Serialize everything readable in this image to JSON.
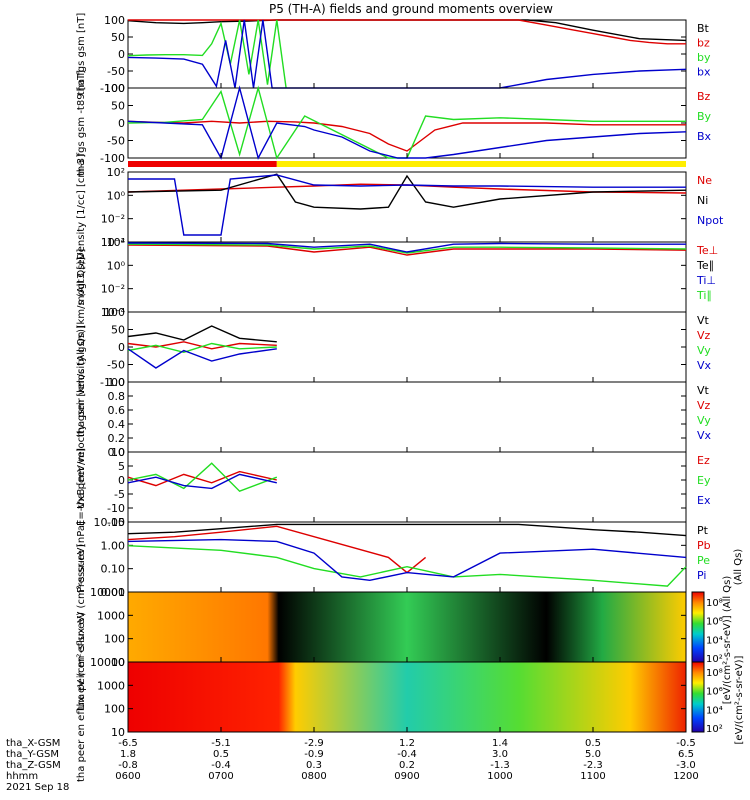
{
  "title": "P5 (TH-A) fields and ground moments overview",
  "colors": {
    "black": "#000000",
    "red": "#dd0000",
    "green": "#22dd22",
    "blue": "#0000cc",
    "mode_red": "#ee0000",
    "mode_yellow": "#ffee00"
  },
  "chart_data": [
    {
      "type": "line",
      "panel": "fgs_gsm",
      "ylabel": "tha fgs gsm [nT]",
      "ylim": [
        -100,
        100
      ],
      "yticks": [
        "100",
        "50",
        "0",
        "-50",
        "-100"
      ],
      "legend": [
        "Bt",
        "bz",
        "by",
        "bx"
      ],
      "series": [
        {
          "name": "Bt",
          "color": "black",
          "x": [
            6.0,
            6.3,
            6.6,
            6.8,
            7.0,
            7.3,
            7.6,
            10.3,
            10.6,
            11.0,
            11.5,
            12.0
          ],
          "y": [
            98,
            92,
            90,
            92,
            95,
            97,
            100,
            100,
            92,
            70,
            45,
            40
          ]
        },
        {
          "name": "bz",
          "color": "red",
          "x": [
            6.0,
            7.6,
            10.2,
            10.5,
            10.8,
            11.0,
            11.2,
            11.4,
            11.6,
            11.8,
            12.0
          ],
          "y": [
            100,
            100,
            100,
            85,
            70,
            60,
            50,
            40,
            34,
            30,
            30
          ]
        },
        {
          "name": "by",
          "color": "green",
          "x": [
            6.0,
            6.2,
            6.4,
            6.6,
            6.8,
            6.9,
            7.0,
            7.1,
            7.2,
            7.3,
            7.4,
            7.5,
            7.6,
            7.7
          ],
          "y": [
            -5,
            -3,
            -2,
            -2,
            -4,
            30,
            90,
            -30,
            100,
            -60,
            100,
            -90,
            100,
            -100
          ]
        },
        {
          "name": "bx",
          "color": "blue",
          "x": [
            6.0,
            6.3,
            6.6,
            6.8,
            6.95,
            7.05,
            7.15,
            7.25,
            7.35,
            7.45,
            7.55,
            7.65,
            10.0,
            10.5,
            11.0,
            11.5,
            12.0
          ],
          "y": [
            -10,
            -12,
            -15,
            -30,
            -95,
            40,
            -100,
            100,
            -100,
            100,
            -100,
            -100,
            -100,
            -75,
            -60,
            -50,
            -45
          ]
        }
      ]
    },
    {
      "type": "line",
      "panel": "fgs_gsm_t89",
      "ylabel": "tha fgs gsm -t89 [nT]",
      "ylim": [
        -100,
        100
      ],
      "yticks": [
        "100",
        "50",
        "0",
        "-50",
        "-100"
      ],
      "legend": [
        "Bz",
        "By",
        "Bx"
      ],
      "series": [
        {
          "name": "Bz",
          "color": "red",
          "x": [
            6.0,
            6.3,
            6.6,
            6.9,
            7.2,
            7.5,
            7.8,
            8.0,
            8.3,
            8.6,
            8.8,
            9.0,
            9.3,
            9.6,
            10.0,
            10.5,
            11.0,
            11.5,
            12.0
          ],
          "y": [
            5,
            2,
            0,
            5,
            0,
            5,
            3,
            0,
            -10,
            -30,
            -60,
            -80,
            -20,
            0,
            0,
            0,
            -5,
            -5,
            -5
          ]
        },
        {
          "name": "By",
          "color": "green",
          "x": [
            6.0,
            6.4,
            6.8,
            7.0,
            7.2,
            7.4,
            7.6,
            7.9,
            8.2,
            8.5,
            8.8,
            9.0,
            9.2,
            9.5,
            10.0,
            10.5,
            11.0,
            11.5,
            12.0
          ],
          "y": [
            0,
            2,
            10,
            90,
            -90,
            100,
            -100,
            20,
            -20,
            -60,
            -100,
            -100,
            20,
            10,
            15,
            10,
            5,
            5,
            5
          ]
        },
        {
          "name": "Bx",
          "color": "blue",
          "x": [
            6.0,
            6.4,
            6.8,
            7.0,
            7.2,
            7.4,
            7.6,
            7.9,
            8.0,
            8.3,
            8.6,
            8.9,
            9.2,
            9.5,
            10.0,
            10.5,
            11.0,
            11.5,
            12.0
          ],
          "y": [
            5,
            0,
            -5,
            -100,
            100,
            -100,
            0,
            -10,
            -20,
            -40,
            -80,
            -100,
            -100,
            -90,
            -70,
            -50,
            -40,
            -30,
            -25
          ]
        }
      ]
    },
    {
      "type": "line",
      "panel": "density",
      "ylabel": "Density [1/cc] [cm-3]",
      "yscale": "log",
      "ylim": [
        1e-05,
        100
      ],
      "yticks": [
        "10²",
        "10⁰",
        "10⁻²",
        "10⁻⁴"
      ],
      "legend": [
        "Ne",
        "Ni",
        "Npot"
      ],
      "series": [
        {
          "name": "Ne",
          "color": "red",
          "x": [
            6.0,
            7.0,
            7.6,
            8.0,
            8.5,
            9.0,
            9.5,
            10.0,
            11.0,
            12.0
          ],
          "y": [
            1,
            2,
            3,
            4,
            6,
            5,
            3,
            2,
            1,
            0.8
          ]
        },
        {
          "name": "Ni",
          "color": "black",
          "x": [
            6.0,
            7.0,
            7.6,
            7.8,
            8.0,
            8.5,
            8.8,
            9.0,
            9.2,
            9.5,
            10.0,
            11.0,
            12.0
          ],
          "y": [
            1,
            1.5,
            60,
            0.1,
            0.03,
            0.02,
            0.03,
            40,
            0.1,
            0.03,
            0.2,
            1,
            1.5
          ]
        },
        {
          "name": "Npot",
          "color": "blue",
          "x": [
            6.0,
            6.5,
            6.6,
            7.0,
            7.1,
            7.6,
            8.0,
            8.5,
            9.0,
            9.5,
            10.0,
            11.0,
            12.0
          ],
          "y": [
            20,
            20,
            5e-05,
            5e-05,
            20,
            50,
            5,
            4,
            5,
            4,
            4,
            3,
            3
          ]
        }
      ]
    },
    {
      "type": "line",
      "panel": "temperature",
      "ylabel": "mogt3 [eV]",
      "yscale": "log",
      "ylim": [
        1e-05,
        100
      ],
      "yticks": [
        "10²",
        "10⁰",
        "10⁻²",
        "10⁻⁴"
      ],
      "legend": [
        "Te⊥",
        "Te∥",
        "Ti⊥",
        "Ti∥"
      ],
      "series": [
        {
          "name": "Te⊥",
          "color": "red",
          "x": [
            6.0,
            7.5,
            8.0,
            8.6,
            9.0,
            9.5,
            10.0,
            11.0,
            12.0
          ],
          "y": [
            50,
            40,
            10,
            30,
            5,
            20,
            20,
            20,
            15
          ]
        },
        {
          "name": "Ti∥",
          "color": "green",
          "x": [
            6.0,
            7.5,
            8.0,
            8.6,
            9.0,
            9.5,
            10.0,
            11.0,
            12.0
          ],
          "y": [
            60,
            50,
            20,
            40,
            8,
            30,
            30,
            25,
            20
          ]
        },
        {
          "name": "Ti⊥",
          "color": "blue",
          "x": [
            6.0,
            7.5,
            8.0,
            8.6,
            9.0,
            9.5,
            10.0,
            11.0,
            12.0
          ],
          "y": [
            80,
            70,
            30,
            60,
            10,
            60,
            70,
            60,
            60
          ]
        }
      ]
    },
    {
      "type": "line",
      "panel": "peir_velocity",
      "ylabel": "tha peir velocity gsm [km/s (All Qs)]",
      "ylim": [
        -100,
        100
      ],
      "yticks": [
        "100",
        "50",
        "0",
        "-50",
        "-100"
      ],
      "legend": [
        "Vt",
        "Vz",
        "Vy",
        "Vx"
      ],
      "series": [
        {
          "name": "Vt",
          "color": "black",
          "x": [
            6.0,
            6.3,
            6.6,
            6.9,
            7.2,
            7.6
          ],
          "y": [
            30,
            40,
            20,
            60,
            25,
            15
          ]
        },
        {
          "name": "Vz",
          "color": "red",
          "x": [
            6.0,
            6.3,
            6.6,
            6.9,
            7.2,
            7.6
          ],
          "y": [
            10,
            0,
            15,
            -5,
            10,
            5
          ]
        },
        {
          "name": "Vy",
          "color": "green",
          "x": [
            6.0,
            6.3,
            6.6,
            6.9,
            7.2,
            7.6
          ],
          "y": [
            -10,
            5,
            -15,
            10,
            -5,
            0
          ]
        },
        {
          "name": "Vx",
          "color": "blue",
          "x": [
            6.0,
            6.3,
            6.6,
            6.9,
            7.2,
            7.6
          ],
          "y": [
            -5,
            -60,
            -10,
            -40,
            -20,
            -5
          ]
        }
      ]
    },
    {
      "type": "line",
      "panel": "peer_velocity",
      "ylabel": "tha peer velocity gsm [km/s (All Qs)]",
      "ylim": [
        0,
        1
      ],
      "yticks": [
        "1.0",
        "0.8",
        "0.6",
        "0.4",
        "0.2",
        "0.0"
      ],
      "legend": [
        "Vt",
        "Vz",
        "Vy",
        "Vx"
      ],
      "series": []
    },
    {
      "type": "line",
      "panel": "efield",
      "ylabel": "E=-VxB [mV/m]",
      "ylim": [
        -15,
        10
      ],
      "yticks": [
        "10",
        "5",
        "0",
        "-5",
        "-10",
        "-15"
      ],
      "legend": [
        "Ez",
        "Ey",
        "Ex"
      ],
      "series": [
        {
          "name": "Ez",
          "color": "red",
          "x": [
            6.0,
            6.3,
            6.6,
            6.9,
            7.2,
            7.6
          ],
          "y": [
            1,
            -2,
            2,
            -1,
            3,
            0
          ]
        },
        {
          "name": "Ey",
          "color": "green",
          "x": [
            6.0,
            6.3,
            6.6,
            6.9,
            7.2,
            7.6
          ],
          "y": [
            0,
            2,
            -3,
            6,
            -4,
            1
          ]
        },
        {
          "name": "Ex",
          "color": "blue",
          "x": [
            6.0,
            6.3,
            6.6,
            6.9,
            7.2,
            7.6
          ],
          "y": [
            -1,
            1,
            -2,
            -3,
            2,
            -1
          ]
        }
      ]
    },
    {
      "type": "line",
      "panel": "pressure",
      "ylabel": "Pressure [nPa]",
      "yscale": "log",
      "ylim": [
        0.005,
        20
      ],
      "yticks": [
        "10.00",
        "1.00",
        "0.10",
        "0.01"
      ],
      "legend": [
        "Pt",
        "Pb",
        "Pe",
        "Pi"
      ],
      "legend_note": "(All Qs)",
      "series": [
        {
          "name": "Pt",
          "color": "black",
          "x": [
            6.0,
            6.5,
            7.0,
            7.6,
            10.2,
            10.5,
            11.0,
            11.5,
            12.0
          ],
          "y": [
            5,
            6,
            9,
            15,
            15,
            12,
            8,
            6,
            4
          ]
        },
        {
          "name": "Pb",
          "color": "red",
          "x": [
            6.0,
            6.5,
            7.0,
            7.6,
            8.8,
            9.0,
            9.2
          ],
          "y": [
            2.5,
            3.5,
            6,
            12,
            0.3,
            0.05,
            0.3
          ]
        },
        {
          "name": "Pe",
          "color": "green",
          "x": [
            6.0,
            7.0,
            7.6,
            8.0,
            8.5,
            9.0,
            9.5,
            10.0,
            11.0,
            11.8,
            12.0
          ],
          "y": [
            1.2,
            0.7,
            0.3,
            0.08,
            0.03,
            0.1,
            0.03,
            0.04,
            0.02,
            0.01,
            0.1
          ]
        },
        {
          "name": "Pi",
          "color": "blue",
          "x": [
            6.0,
            7.0,
            7.6,
            8.0,
            8.3,
            8.6,
            9.0,
            9.5,
            10.0,
            11.0,
            12.0
          ],
          "y": [
            2,
            2.5,
            2,
            0.5,
            0.03,
            0.02,
            0.05,
            0.03,
            0.5,
            0.8,
            0.3
          ]
        }
      ]
    },
    {
      "type": "heatmap",
      "panel": "peir_energy",
      "ylabel": "tha peir en eflux eV (cm²-s-sr-eV)",
      "yscale": "log",
      "ylim": [
        7,
        20000
      ],
      "yticks": [
        "10000",
        "1000",
        "100",
        "10"
      ]
    },
    {
      "type": "heatmap",
      "panel": "peer_energy",
      "ylabel": "tha peer en eflux eV (cm²-s-sr-eV)",
      "yscale": "log",
      "ylim": [
        7,
        20000
      ],
      "yticks": [
        "10000",
        "1000",
        "100",
        "10"
      ]
    }
  ],
  "colorbar": {
    "label": "[eV/(cm²-s-sr-eV)]",
    "label2": "[eV/(cm²-s-sr-eV)] (All Qs)",
    "ticks_top": [
      "10⁸",
      "10⁶",
      "10⁴",
      "10²"
    ],
    "ticks_bottom": [
      "10⁸",
      "10⁶",
      "10⁴",
      "10²"
    ]
  },
  "mode_bar": {
    "red_from": 6.0,
    "red_to": 7.6,
    "yellow_from": 7.6,
    "yellow_to": 12.0
  },
  "x_axis": {
    "row_labels": [
      "tha_X-GSM",
      "tha_Y-GSM",
      "tha_Z-GSM",
      "hhmm",
      "2021 Sep 18"
    ],
    "x_gsm": [
      "-6.5",
      "-5.1",
      "-2.9",
      "1.2",
      "1.4",
      "0.5",
      "-0.5"
    ],
    "y_gsm": [
      "1.8",
      "0.5",
      "-0.9",
      "-0.4",
      "3.0",
      "5.0",
      "6.5"
    ],
    "z_gsm": [
      "-0.8",
      "-0.4",
      "0.3",
      "0.2",
      "-1.3",
      "-2.3",
      "-3.0"
    ],
    "hhmm": [
      "0600",
      "0700",
      "0800",
      "0900",
      "1000",
      "1100",
      "1200"
    ]
  }
}
